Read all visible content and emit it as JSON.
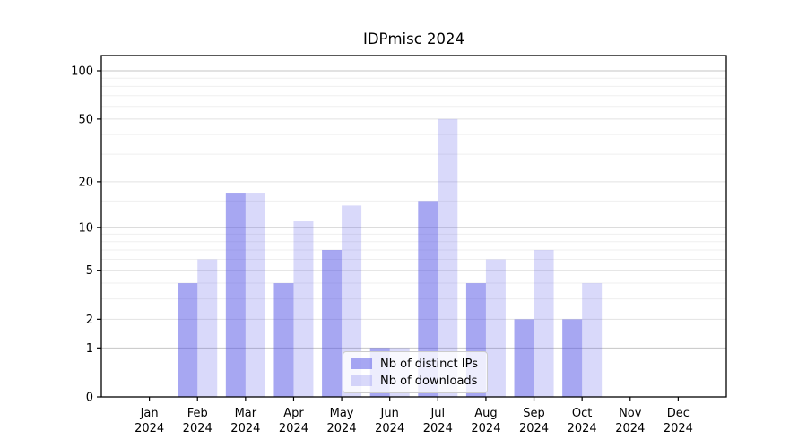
{
  "chart_data": {
    "type": "bar",
    "title": "IDPmisc 2024",
    "categories": [
      "Jan 2024",
      "Feb 2024",
      "Mar 2024",
      "Apr 2024",
      "May 2024",
      "Jun 2024",
      "Jul 2024",
      "Aug 2024",
      "Sep 2024",
      "Oct 2024",
      "Nov 2024",
      "Dec 2024"
    ],
    "series": [
      {
        "name": "Nb of distinct IPs",
        "color": "rgba(80,80,230,0.50)",
        "values": [
          0,
          4,
          17,
          4,
          7,
          1,
          15,
          4,
          2,
          2,
          0,
          0
        ]
      },
      {
        "name": "Nb of downloads",
        "color": "rgba(80,80,230,0.22)",
        "values": [
          0,
          6,
          17,
          11,
          14,
          1,
          50,
          6,
          7,
          4,
          0,
          0
        ]
      }
    ],
    "yscale": "log1p",
    "y_ticks": [
      0,
      1,
      2,
      5,
      10,
      20,
      50,
      100
    ],
    "y_major_emphasis": [
      1,
      10,
      100
    ],
    "y_minor_ticks": [
      3,
      4,
      6,
      7,
      8,
      9,
      15,
      30,
      40,
      60,
      70,
      80,
      90
    ],
    "ylim": [
      0,
      125
    ],
    "xlabel": "",
    "ylabel": "",
    "grid": true,
    "legend_position": "lower center"
  },
  "colors": {
    "bar_distinct_ips": "rgba(80,80,230,0.50)",
    "bar_downloads": "rgba(80,80,230,0.22)",
    "grid_major": "#c6c6c6",
    "grid_labeled": "#e2e2e2",
    "grid_minor": "#efefef",
    "axis": "#000000",
    "legend_border": "#cccccc",
    "text": "#000000"
  }
}
